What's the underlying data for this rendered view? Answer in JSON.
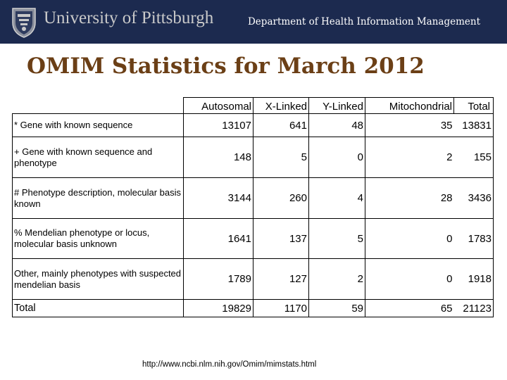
{
  "header": {
    "university": "University of Pittsburgh",
    "department": "Department of Health Information Management",
    "logo_icon": "university-seal-icon",
    "background_color": "#1c2a4f"
  },
  "title": "OMIM Statistics for March 2012",
  "title_color": "#6b3f16",
  "table": {
    "columns": [
      "Autosomal",
      "X-Linked",
      "Y-Linked",
      "Mitochondrial",
      "Total"
    ],
    "rows": [
      {
        "label": "* Gene with known sequence",
        "values": [
          "13107",
          "641",
          "48",
          "35",
          "13831"
        ]
      },
      {
        "label": "+ Gene with known sequence and phenotype",
        "values": [
          "148",
          "5",
          "0",
          "2",
          "155"
        ]
      },
      {
        "label": "# Phenotype description, molecular basis known",
        "values": [
          "3144",
          "260",
          "4",
          "28",
          "3436"
        ]
      },
      {
        "label": "% Mendelian phenotype or locus, molecular basis unknown",
        "values": [
          "1641",
          "137",
          "5",
          "0",
          "1783"
        ]
      },
      {
        "label": "Other, mainly phenotypes with suspected mendelian basis",
        "values": [
          "1789",
          "127",
          "2",
          "0",
          "1918"
        ]
      },
      {
        "label": "Total",
        "values": [
          "19829",
          "1170",
          "59",
          "65",
          "21123"
        ]
      }
    ]
  },
  "source": "http://www.ncbi.nlm.nih.gov/Omim/mimstats.html"
}
